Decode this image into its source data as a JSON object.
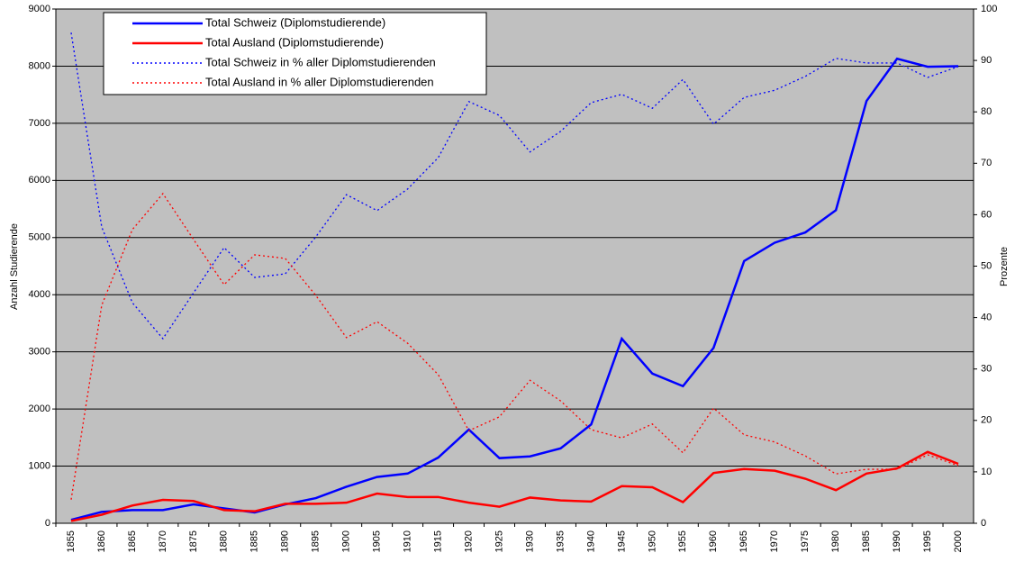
{
  "chart_data": {
    "type": "line",
    "y_label": "Anzahl Studierende",
    "y2_label": "Prozente",
    "categories": [
      "1855",
      "1860",
      "1865",
      "1870",
      "1875",
      "1880",
      "1885",
      "1890",
      "1895",
      "1900",
      "1905",
      "1910",
      "1915",
      "1920",
      "1925",
      "1930",
      "1935",
      "1940",
      "1945",
      "1950",
      "1955",
      "1960",
      "1965",
      "1970",
      "1975",
      "1980",
      "1985",
      "1990",
      "1995",
      "2000"
    ],
    "series": [
      {
        "name": "Total Schweiz (Diplomstudierende)",
        "color": "#0000ff",
        "line_style": "solid",
        "values": [
          60,
          200,
          230,
          230,
          330,
          260,
          190,
          330,
          440,
          640,
          810,
          870,
          1150,
          1640,
          1140,
          1170,
          1310,
          1730,
          3230,
          2620,
          2400,
          3070,
          4590,
          4910,
          5090,
          5480,
          7390,
          8130,
          7990,
          8000
        ]
      },
      {
        "name": "Total Ausland (Diplomstudierende)",
        "color": "#ff0000",
        "line_style": "solid",
        "values": [
          40,
          150,
          310,
          410,
          390,
          230,
          210,
          340,
          340,
          360,
          520,
          460,
          460,
          360,
          290,
          450,
          400,
          380,
          650,
          630,
          370,
          880,
          950,
          920,
          780,
          580,
          870,
          960,
          1250,
          1040
        ]
      },
      {
        "name": "Total Schweiz in % aller Diplomstudierenden",
        "color": "#0000ff",
        "line_style": "dotted",
        "axis": "y2",
        "values": [
          95.4,
          57.6,
          42.9,
          35.9,
          44.8,
          53.6,
          47.8,
          48.5,
          55.7,
          63.9,
          60.8,
          65,
          71.1,
          82,
          79.3,
          72.2,
          76.2,
          81.8,
          83.4,
          80.7,
          86.3,
          77.6,
          82.8,
          84.2,
          86.9,
          90.4,
          89.5,
          89.5,
          86.7,
          88.8
        ]
      },
      {
        "name": "Total Ausland in % aller Diplomstudierenden",
        "color": "#ff0000",
        "line_style": "dotted",
        "axis": "y2",
        "values": [
          4.6,
          42.4,
          57.1,
          64.1,
          55.2,
          46.4,
          52.2,
          51.5,
          44.3,
          36.1,
          39.2,
          35,
          28.9,
          18,
          20.7,
          27.8,
          23.8,
          18.2,
          16.6,
          19.3,
          13.7,
          22.4,
          17.2,
          15.8,
          13.1,
          9.6,
          10.5,
          10.5,
          13.3,
          11.2
        ]
      }
    ],
    "ylim": [
      0,
      9000
    ],
    "yticks": [
      0,
      1000,
      2000,
      3000,
      4000,
      5000,
      6000,
      7000,
      8000,
      9000
    ],
    "y2lim": [
      0,
      100
    ],
    "y2ticks": [
      0,
      10,
      20,
      30,
      40,
      50,
      60,
      70,
      80,
      90,
      100
    ],
    "grid": true,
    "plot_background": "#c0c0c0",
    "legend": "top-left"
  }
}
